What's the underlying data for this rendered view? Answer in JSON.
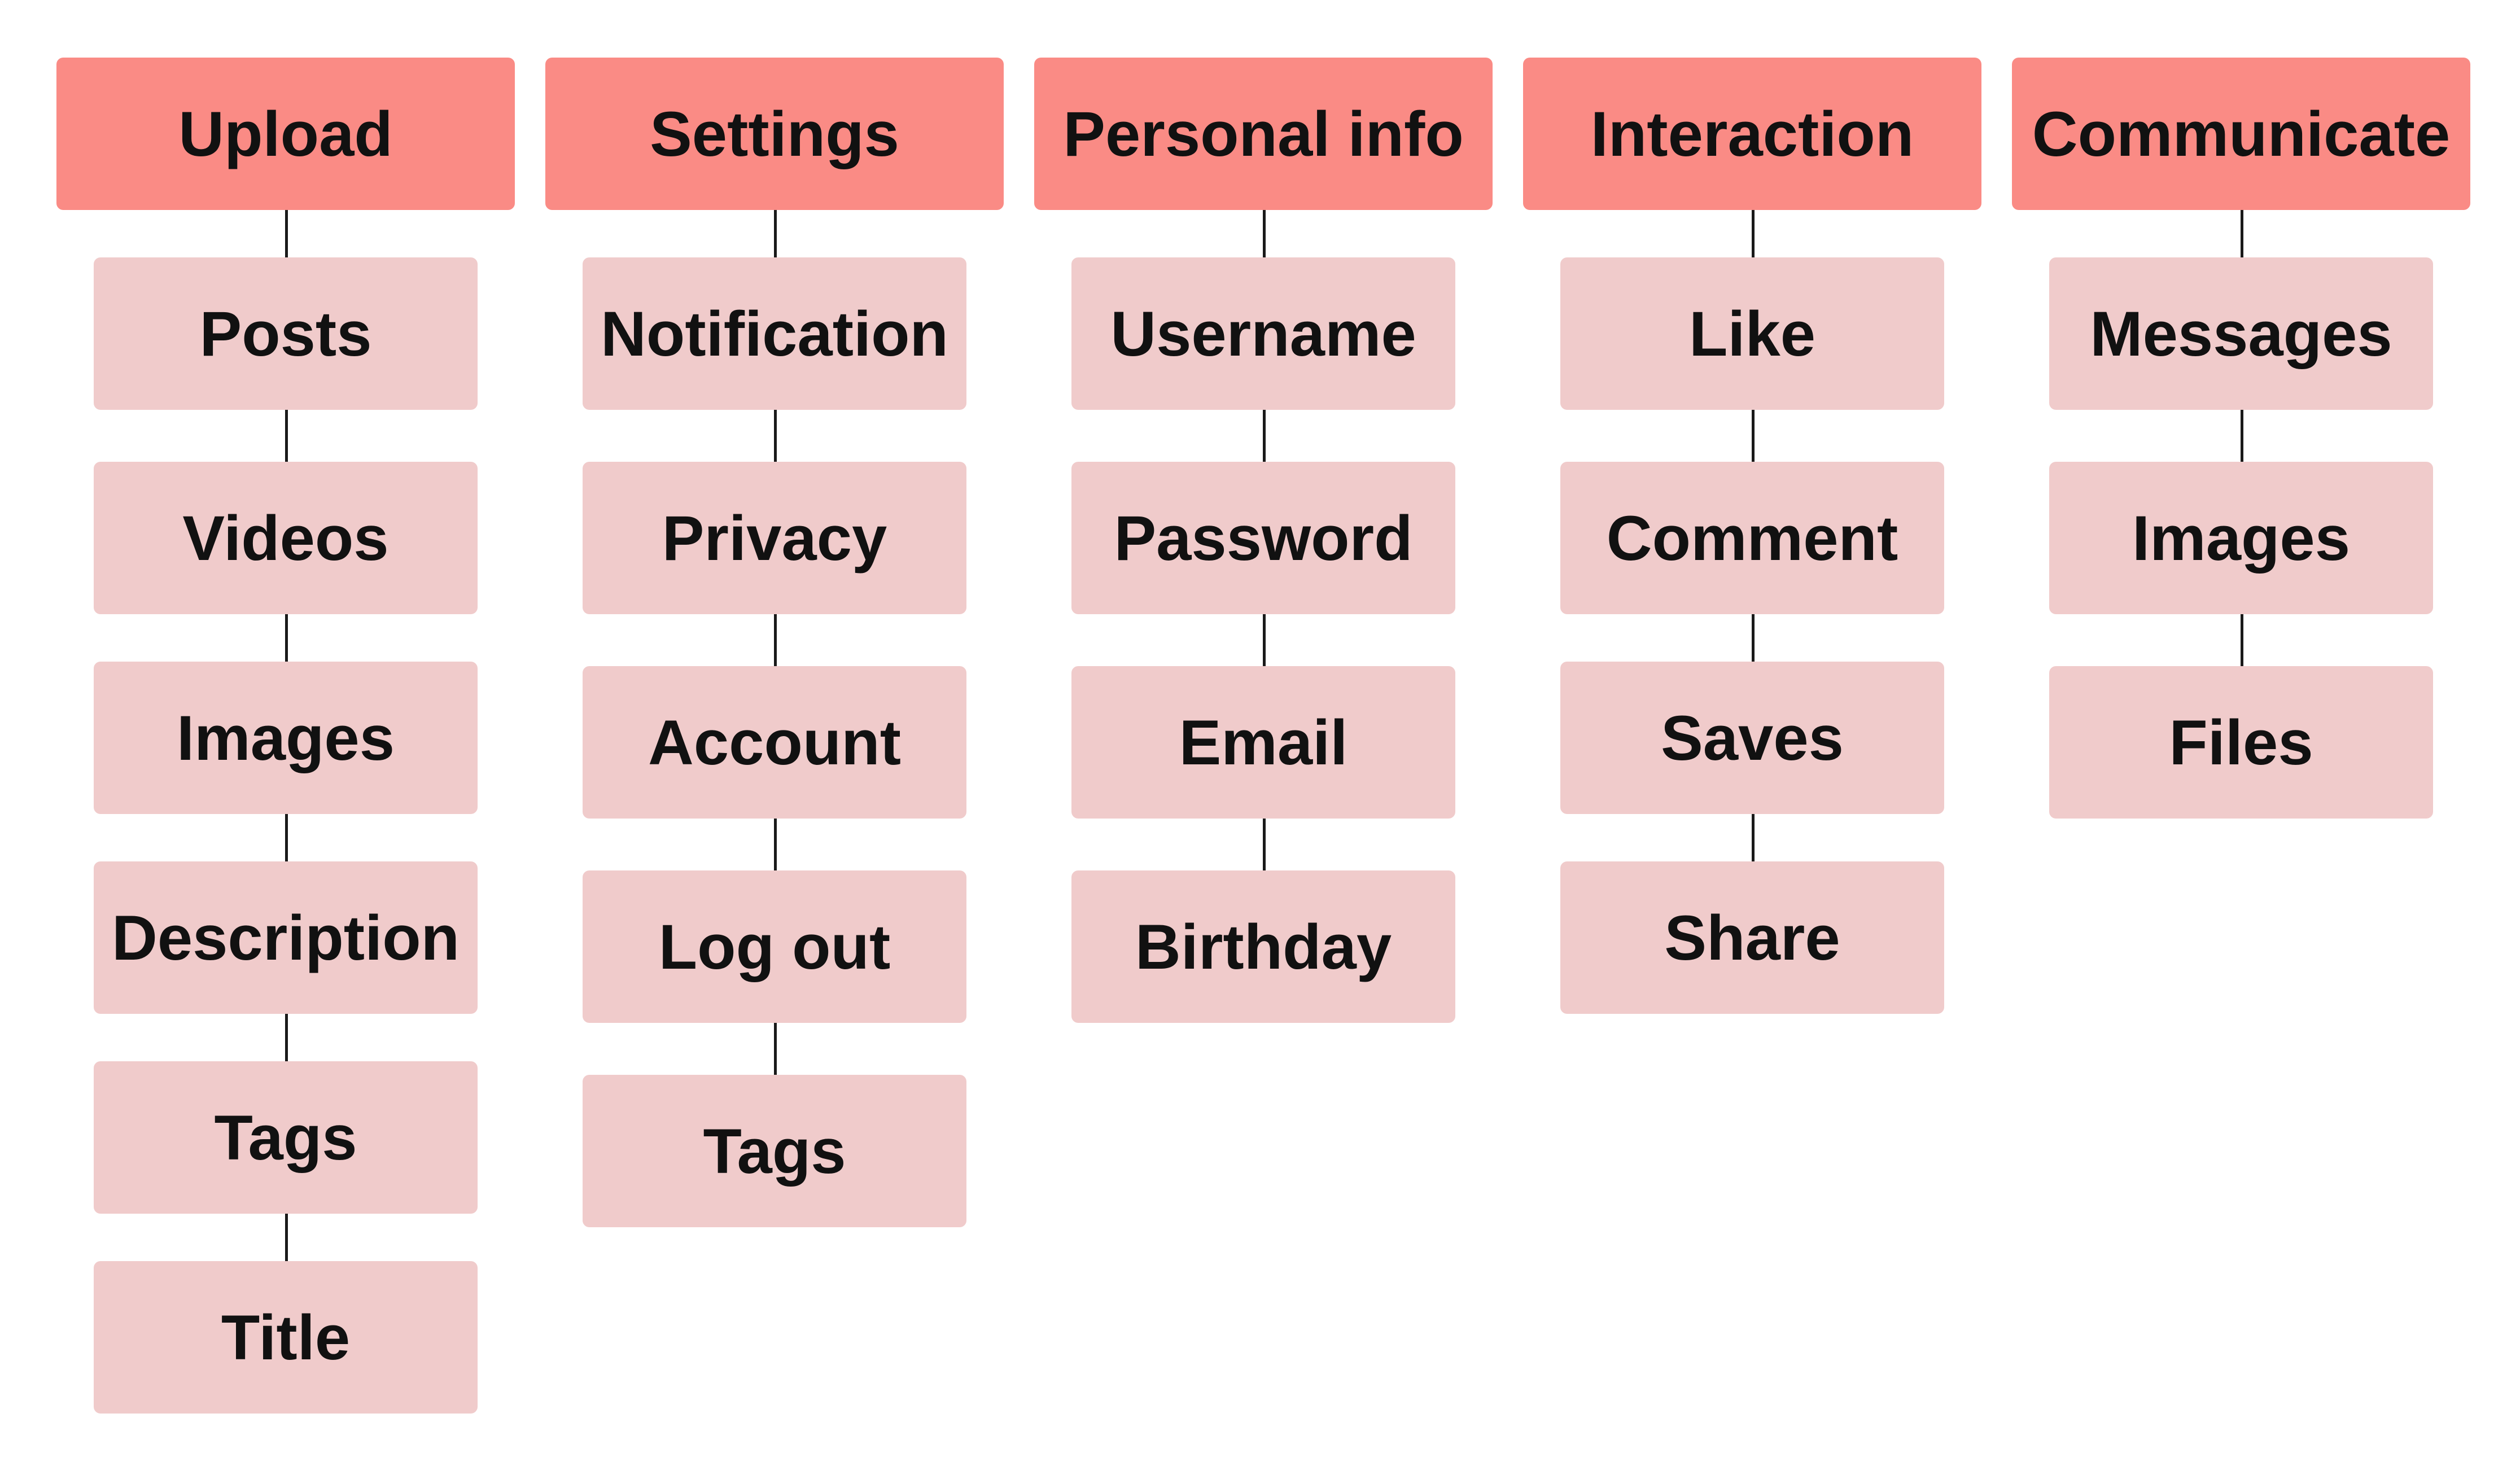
{
  "colors": {
    "header_fill": "#fa8b85",
    "item_fill": "#f0cbcb",
    "connector": "#1a1a1a",
    "text": "#111111",
    "background": "#ffffff"
  },
  "groups": [
    {
      "title": "Upload",
      "items": [
        "Posts",
        "Videos",
        "Images",
        "Description",
        "Tags",
        "Title"
      ]
    },
    {
      "title": "Settings",
      "items": [
        "Notification",
        "Privacy",
        "Account",
        "Log out",
        "Tags"
      ]
    },
    {
      "title": "Personal info",
      "items": [
        "Username",
        "Password",
        "Email",
        "Birthday"
      ]
    },
    {
      "title": "Interaction",
      "items": [
        "Like",
        "Comment",
        "Saves",
        "Share"
      ]
    },
    {
      "title": "Communicate",
      "items": [
        "Messages",
        "Images",
        "Files"
      ]
    }
  ]
}
